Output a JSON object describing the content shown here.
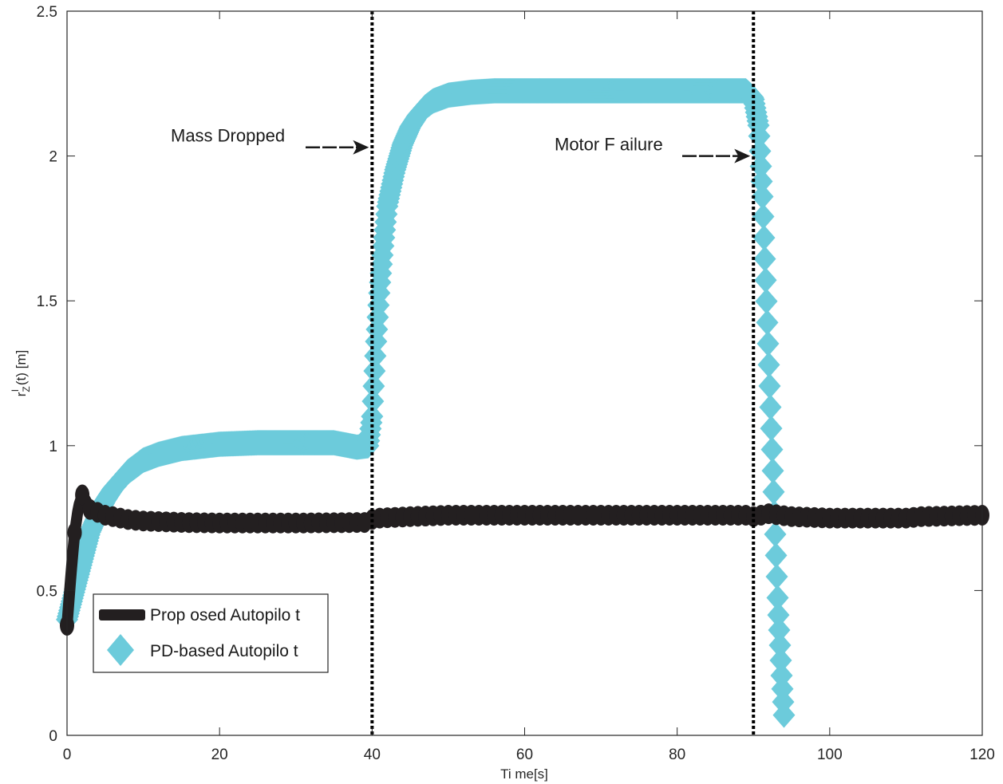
{
  "chart_data": {
    "type": "line",
    "xlabel": "Ti me[s]",
    "ylabel": "r_Z^I (t) [m]",
    "ylabel_parts": {
      "base": "r",
      "sup": "I",
      "sub": "Z",
      "rest": " (t) [m]"
    },
    "xlim": [
      0,
      120
    ],
    "ylim": [
      0,
      2.5
    ],
    "xticks": [
      0,
      20,
      40,
      60,
      80,
      100,
      120
    ],
    "yticks": [
      0,
      0.5,
      1,
      1.5,
      2,
      2.5
    ],
    "xtick_labels": [
      "0",
      "20",
      "40",
      "60",
      "80",
      "100",
      "120"
    ],
    "ytick_labels": [
      "0",
      "0.5",
      "1",
      "1.5",
      "2",
      "2.5"
    ],
    "grid": false,
    "legend_position": "bottom-left",
    "series": [
      {
        "name": "Prop osed Autopilo t",
        "color": "#231f20",
        "marker": "circle",
        "x": [
          0,
          0.5,
          1,
          1.5,
          2,
          2.5,
          3,
          4,
          5,
          6,
          8,
          10,
          15,
          20,
          30,
          39.5,
          40,
          41,
          45,
          50,
          60,
          70,
          80,
          89.5,
          90,
          91,
          92,
          95,
          100,
          110,
          112,
          120
        ],
        "y": [
          0.38,
          0.55,
          0.7,
          0.79,
          0.83,
          0.81,
          0.78,
          0.77,
          0.76,
          0.755,
          0.745,
          0.74,
          0.735,
          0.733,
          0.733,
          0.735,
          0.745,
          0.75,
          0.755,
          0.76,
          0.76,
          0.76,
          0.76,
          0.76,
          0.755,
          0.76,
          0.765,
          0.755,
          0.75,
          0.75,
          0.755,
          0.76
        ]
      },
      {
        "name": "PD-based  Autopilo t",
        "color": "#6ccbdb",
        "marker": "diamond",
        "x": [
          0,
          1,
          2,
          3,
          4,
          5,
          6,
          8,
          10,
          12,
          15,
          20,
          25,
          30,
          35,
          38,
          39.5,
          40,
          40.5,
          41,
          41.5,
          42,
          43,
          44,
          45,
          46,
          47,
          48,
          50,
          53,
          56,
          60,
          70,
          80,
          89,
          90,
          90.7,
          91.2,
          91.7,
          92.2,
          92.7,
          93.2,
          93.7,
          94
        ],
        "y": [
          0.4,
          0.5,
          0.6,
          0.7,
          0.76,
          0.81,
          0.85,
          0.91,
          0.95,
          0.97,
          0.99,
          1.005,
          1.01,
          1.01,
          1.01,
          0.995,
          1.0,
          1.1,
          1.35,
          1.55,
          1.7,
          1.83,
          1.95,
          2.04,
          2.1,
          2.14,
          2.17,
          2.19,
          2.21,
          2.22,
          2.225,
          2.225,
          2.225,
          2.225,
          2.225,
          2.2,
          2.1,
          1.85,
          1.5,
          1.15,
          0.8,
          0.45,
          0.2,
          0.07
        ]
      }
    ],
    "events": [
      {
        "x": 40,
        "label": "Mass  Dropped",
        "label_y": 2.05,
        "arrow_y": 2.03
      },
      {
        "x": 90,
        "label": "Motor  F ailure",
        "label_y": 2.02,
        "arrow_y": 2.0
      }
    ]
  }
}
